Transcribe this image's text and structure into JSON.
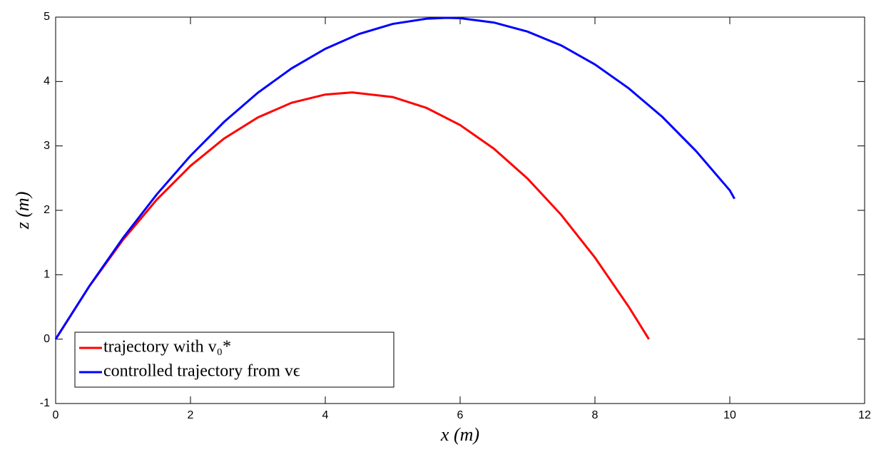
{
  "chart_data": {
    "type": "line",
    "xlabel": "x (m)",
    "ylabel": "z (m)",
    "xlim": [
      0,
      12
    ],
    "xticks": [
      0,
      2,
      4,
      6,
      8,
      10,
      12
    ],
    "ylim": [
      -1,
      5
    ],
    "yticks": [
      -1,
      0,
      1,
      2,
      3,
      4,
      5
    ],
    "grid": false,
    "legend": "lower left",
    "series": [
      {
        "name": "trajectory with v₀*",
        "color": "#ff0000",
        "x": [
          0,
          0.5,
          1,
          1.5,
          2,
          2.5,
          3,
          3.5,
          4,
          4.4,
          5,
          5.5,
          6,
          6.5,
          7,
          7.5,
          8,
          8.5,
          8.8
        ],
        "values": [
          0,
          0.821,
          1.543,
          2.166,
          2.69,
          3.116,
          3.442,
          3.67,
          3.798,
          3.83,
          3.759,
          3.591,
          3.324,
          2.958,
          2.493,
          1.929,
          1.266,
          0.504,
          0
        ]
      },
      {
        "name": "controlled trajectory from vϵ",
        "color": "#0000ff",
        "x": [
          0,
          0.5,
          1,
          1.5,
          2,
          2.5,
          3,
          3.5,
          4,
          4.5,
          5,
          5.5,
          5.8,
          6,
          6.5,
          7,
          7.5,
          8,
          8.5,
          9,
          9.5,
          10,
          10.07
        ],
        "values": [
          0,
          0.823,
          1.572,
          2.247,
          2.847,
          3.374,
          3.826,
          4.204,
          4.508,
          4.738,
          4.894,
          4.975,
          4.989,
          4.983,
          4.916,
          4.775,
          4.56,
          4.265,
          3.895,
          3.45,
          2.92,
          2.31,
          2.18
        ]
      }
    ]
  }
}
